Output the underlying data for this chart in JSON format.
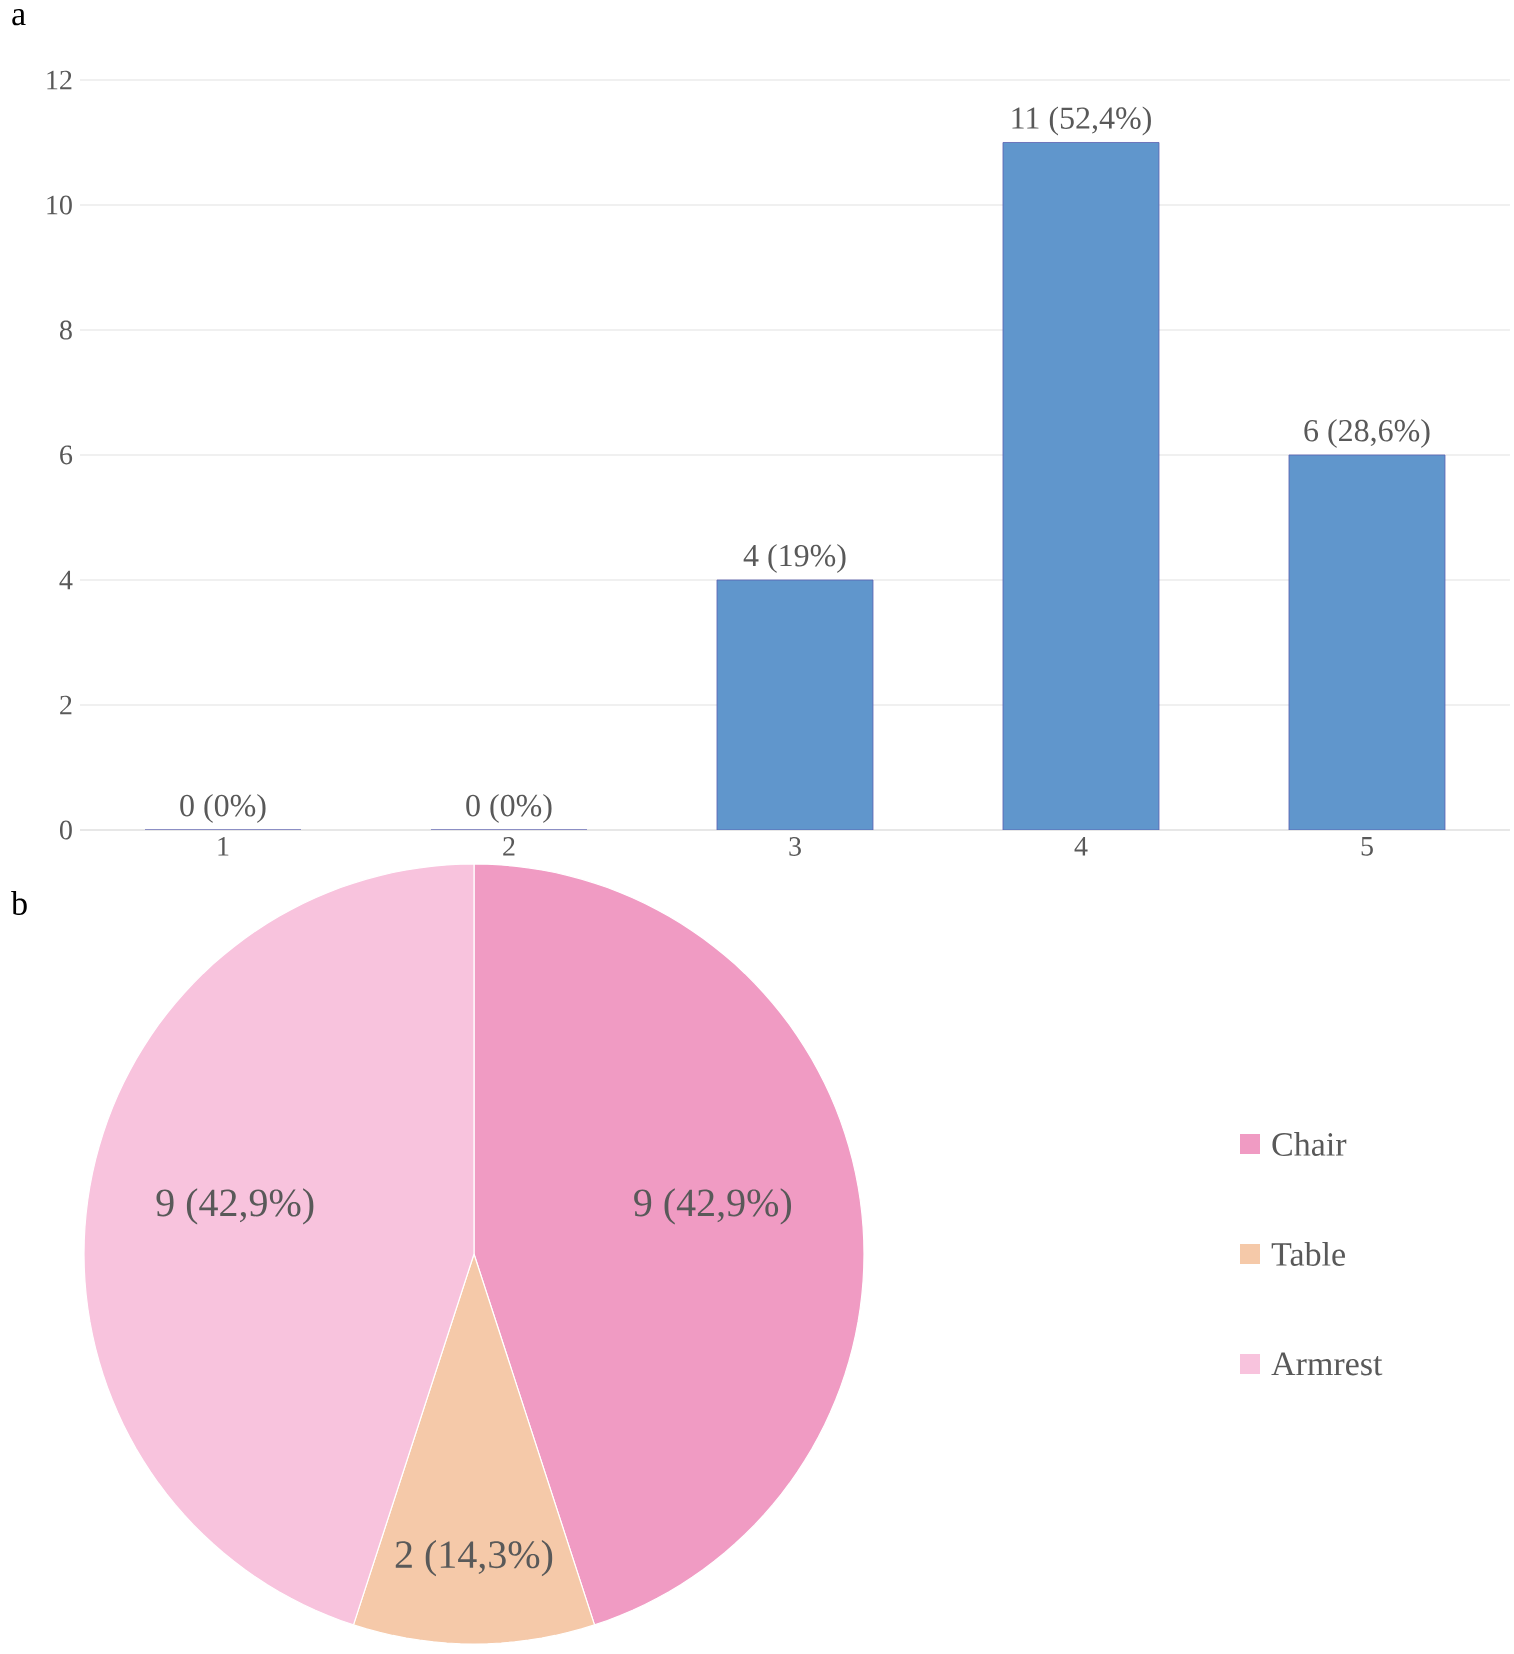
{
  "chart_data": [
    {
      "type": "bar",
      "title": "a",
      "categories": [
        "1",
        "2",
        "3",
        "4",
        "5"
      ],
      "values": [
        0,
        0,
        4,
        11,
        6
      ],
      "value_labels": [
        "0 (0%)",
        "0 (0%)",
        "4 (19%)",
        "11 (52,4%)",
        "6 (28,6%)"
      ],
      "color": "#6096cc",
      "ylim": [
        0,
        12
      ],
      "yticks": [
        0,
        2,
        4,
        6,
        8,
        10,
        12
      ],
      "grid": "y"
    },
    {
      "type": "pie",
      "title": "b",
      "categories": [
        "Chair",
        "Table",
        "Armrest"
      ],
      "values": [
        9,
        2,
        9
      ],
      "value_labels": [
        "9 (42,9%)",
        "2 (14,3%)",
        "9 (42,9%)"
      ],
      "colors": [
        "#f09bc3",
        "#f5c9a9",
        "#f8c3dd"
      ],
      "legend": "right"
    }
  ]
}
